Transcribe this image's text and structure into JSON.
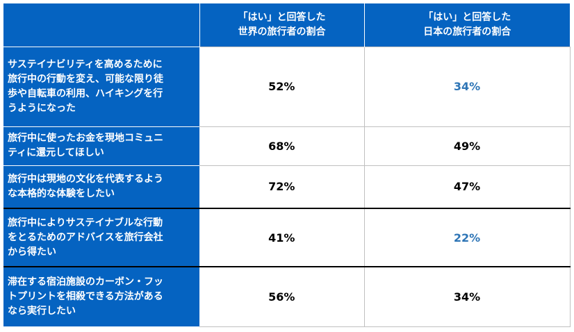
{
  "chart_data": {
    "type": "table",
    "columns": [
      "",
      "「はい」と回答した\n世界の旅行者の割合",
      "「はい」と回答した\n日本の旅行者の割合"
    ],
    "rows": [
      {
        "question": "サステイナビリティを高めるために\n旅行中の行動を変え、可能な限り徒\n歩や自転車の利用、ハイキングを行\nうようになった",
        "world": "52%",
        "japan": "34%",
        "japan_highlight": true
      },
      {
        "question": "旅行中に使ったお金を現地コミュニ\nティに還元してほしい",
        "world": "68%",
        "japan": "49%",
        "japan_highlight": false
      },
      {
        "question": "旅行中は現地の文化を代表するよう\nな本格的な体験をしたい",
        "world": "72%",
        "japan": "47%",
        "japan_highlight": false
      },
      {
        "question": "旅行中によりサステイナブルな行動\nをとるためのアドバイスを旅行会社\nから得たい",
        "world": "41%",
        "japan": "22%",
        "japan_highlight": true
      },
      {
        "question": "滞在する宿泊施設のカーボン・フッ\nトプリントを相殺できる方法がある\nなら実行したい",
        "world": "56%",
        "japan": "34%",
        "japan_highlight": false
      }
    ]
  },
  "colors": {
    "header_bg": "#0563c1",
    "header_text": "#ffffff",
    "highlight_value": "#2e75b6",
    "value_text": "#000000"
  }
}
